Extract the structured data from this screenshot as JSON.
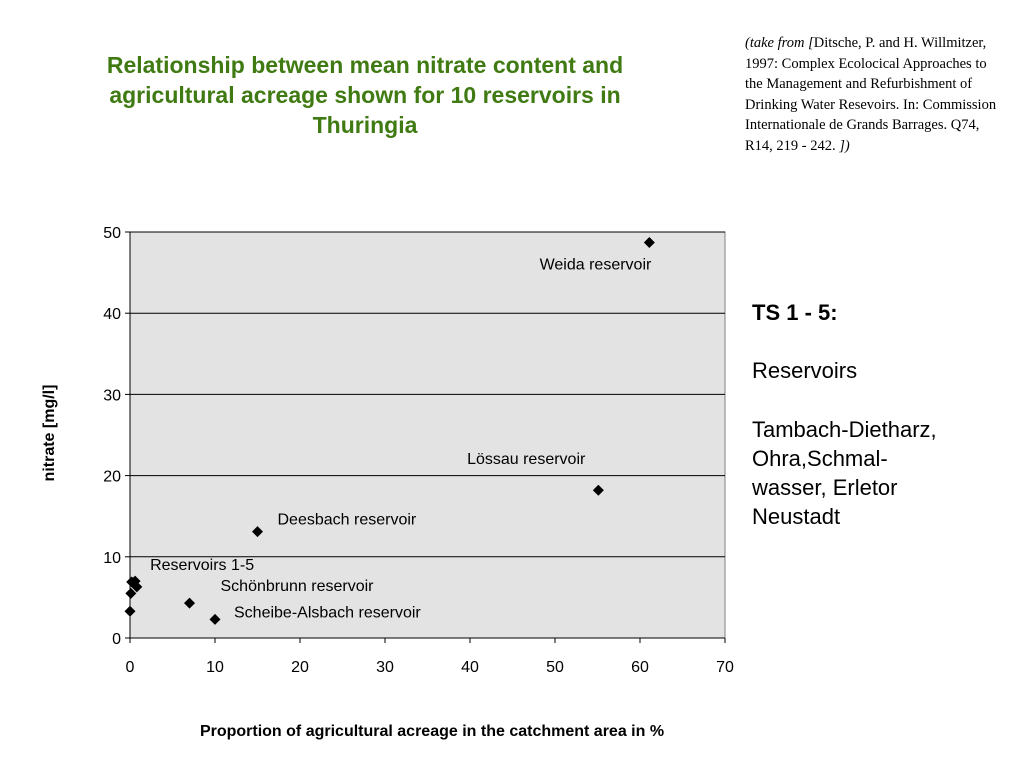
{
  "citation": {
    "prefix": "(take from [",
    "body": "Ditsche, P. and H. Willmitzer, 1997: Complex Ecolocical Approaches to the Management and Refurbishment of Drinking Water Resevoirs. In: Commission Internationale de Grands Barrages. Q74, R14, 219 - 242.",
    "suffix": " ])"
  },
  "side_note": {
    "heading": "TS 1 - 5:",
    "line1": "Reservoirs",
    "line2": "Tambach-Dietharz, Ohra,Schmal-wasser, Erletor Neustadt"
  },
  "chart_data": {
    "type": "scatter",
    "title": "Relationship between mean nitrate content and agricultural acreage shown for 10 reservoirs in Thuringia",
    "xlabel": "Proportion of agricultural acreage in the catchment area in %",
    "ylabel": "nitrate [mg/l]",
    "xlim": [
      0,
      70
    ],
    "ylim": [
      0,
      50
    ],
    "xticks": [
      0,
      10,
      20,
      30,
      40,
      50,
      60,
      70
    ],
    "yticks": [
      0,
      10,
      20,
      30,
      40,
      50
    ],
    "grid": "horizontal",
    "plot_background": "#e3e3e3",
    "marker_color": "#000000",
    "points": [
      {
        "x": 0,
        "y": 3.3
      },
      {
        "x": 0.1,
        "y": 5.5
      },
      {
        "x": 0.2,
        "y": 6.9
      },
      {
        "x": 0.6,
        "y": 7.0
      },
      {
        "x": 0.8,
        "y": 6.3
      },
      {
        "x": 7,
        "y": 4.3
      },
      {
        "x": 10,
        "y": 2.3
      },
      {
        "x": 15,
        "y": 13.1
      },
      {
        "x": 55.1,
        "y": 18.2
      },
      {
        "x": 61.1,
        "y": 48.7
      }
    ],
    "annotations": [
      {
        "text": "Weida reservoir",
        "x": 61.1,
        "y": 48.7,
        "anchor": "end",
        "dx": 2,
        "dy": 27
      },
      {
        "text": "Lössau reservoir",
        "x": 55.1,
        "y": 18.2,
        "anchor": "end",
        "dx": -13,
        "dy": -26
      },
      {
        "text": "Deesbach reservoir",
        "x": 15,
        "y": 13.1,
        "anchor": "start",
        "dx": 20,
        "dy": -7
      },
      {
        "text": "Reservoirs 1-5",
        "x": 0.6,
        "y": 7.0,
        "anchor": "start",
        "dx": 15,
        "dy": -11
      },
      {
        "text": "Schönbrunn reservoir",
        "x": 7,
        "y": 4.3,
        "anchor": "start",
        "dx": 31,
        "dy": -12
      },
      {
        "text": "Scheibe-Alsbach reservoir",
        "x": 10,
        "y": 2.3,
        "anchor": "start",
        "dx": 19,
        "dy": -2
      }
    ]
  }
}
